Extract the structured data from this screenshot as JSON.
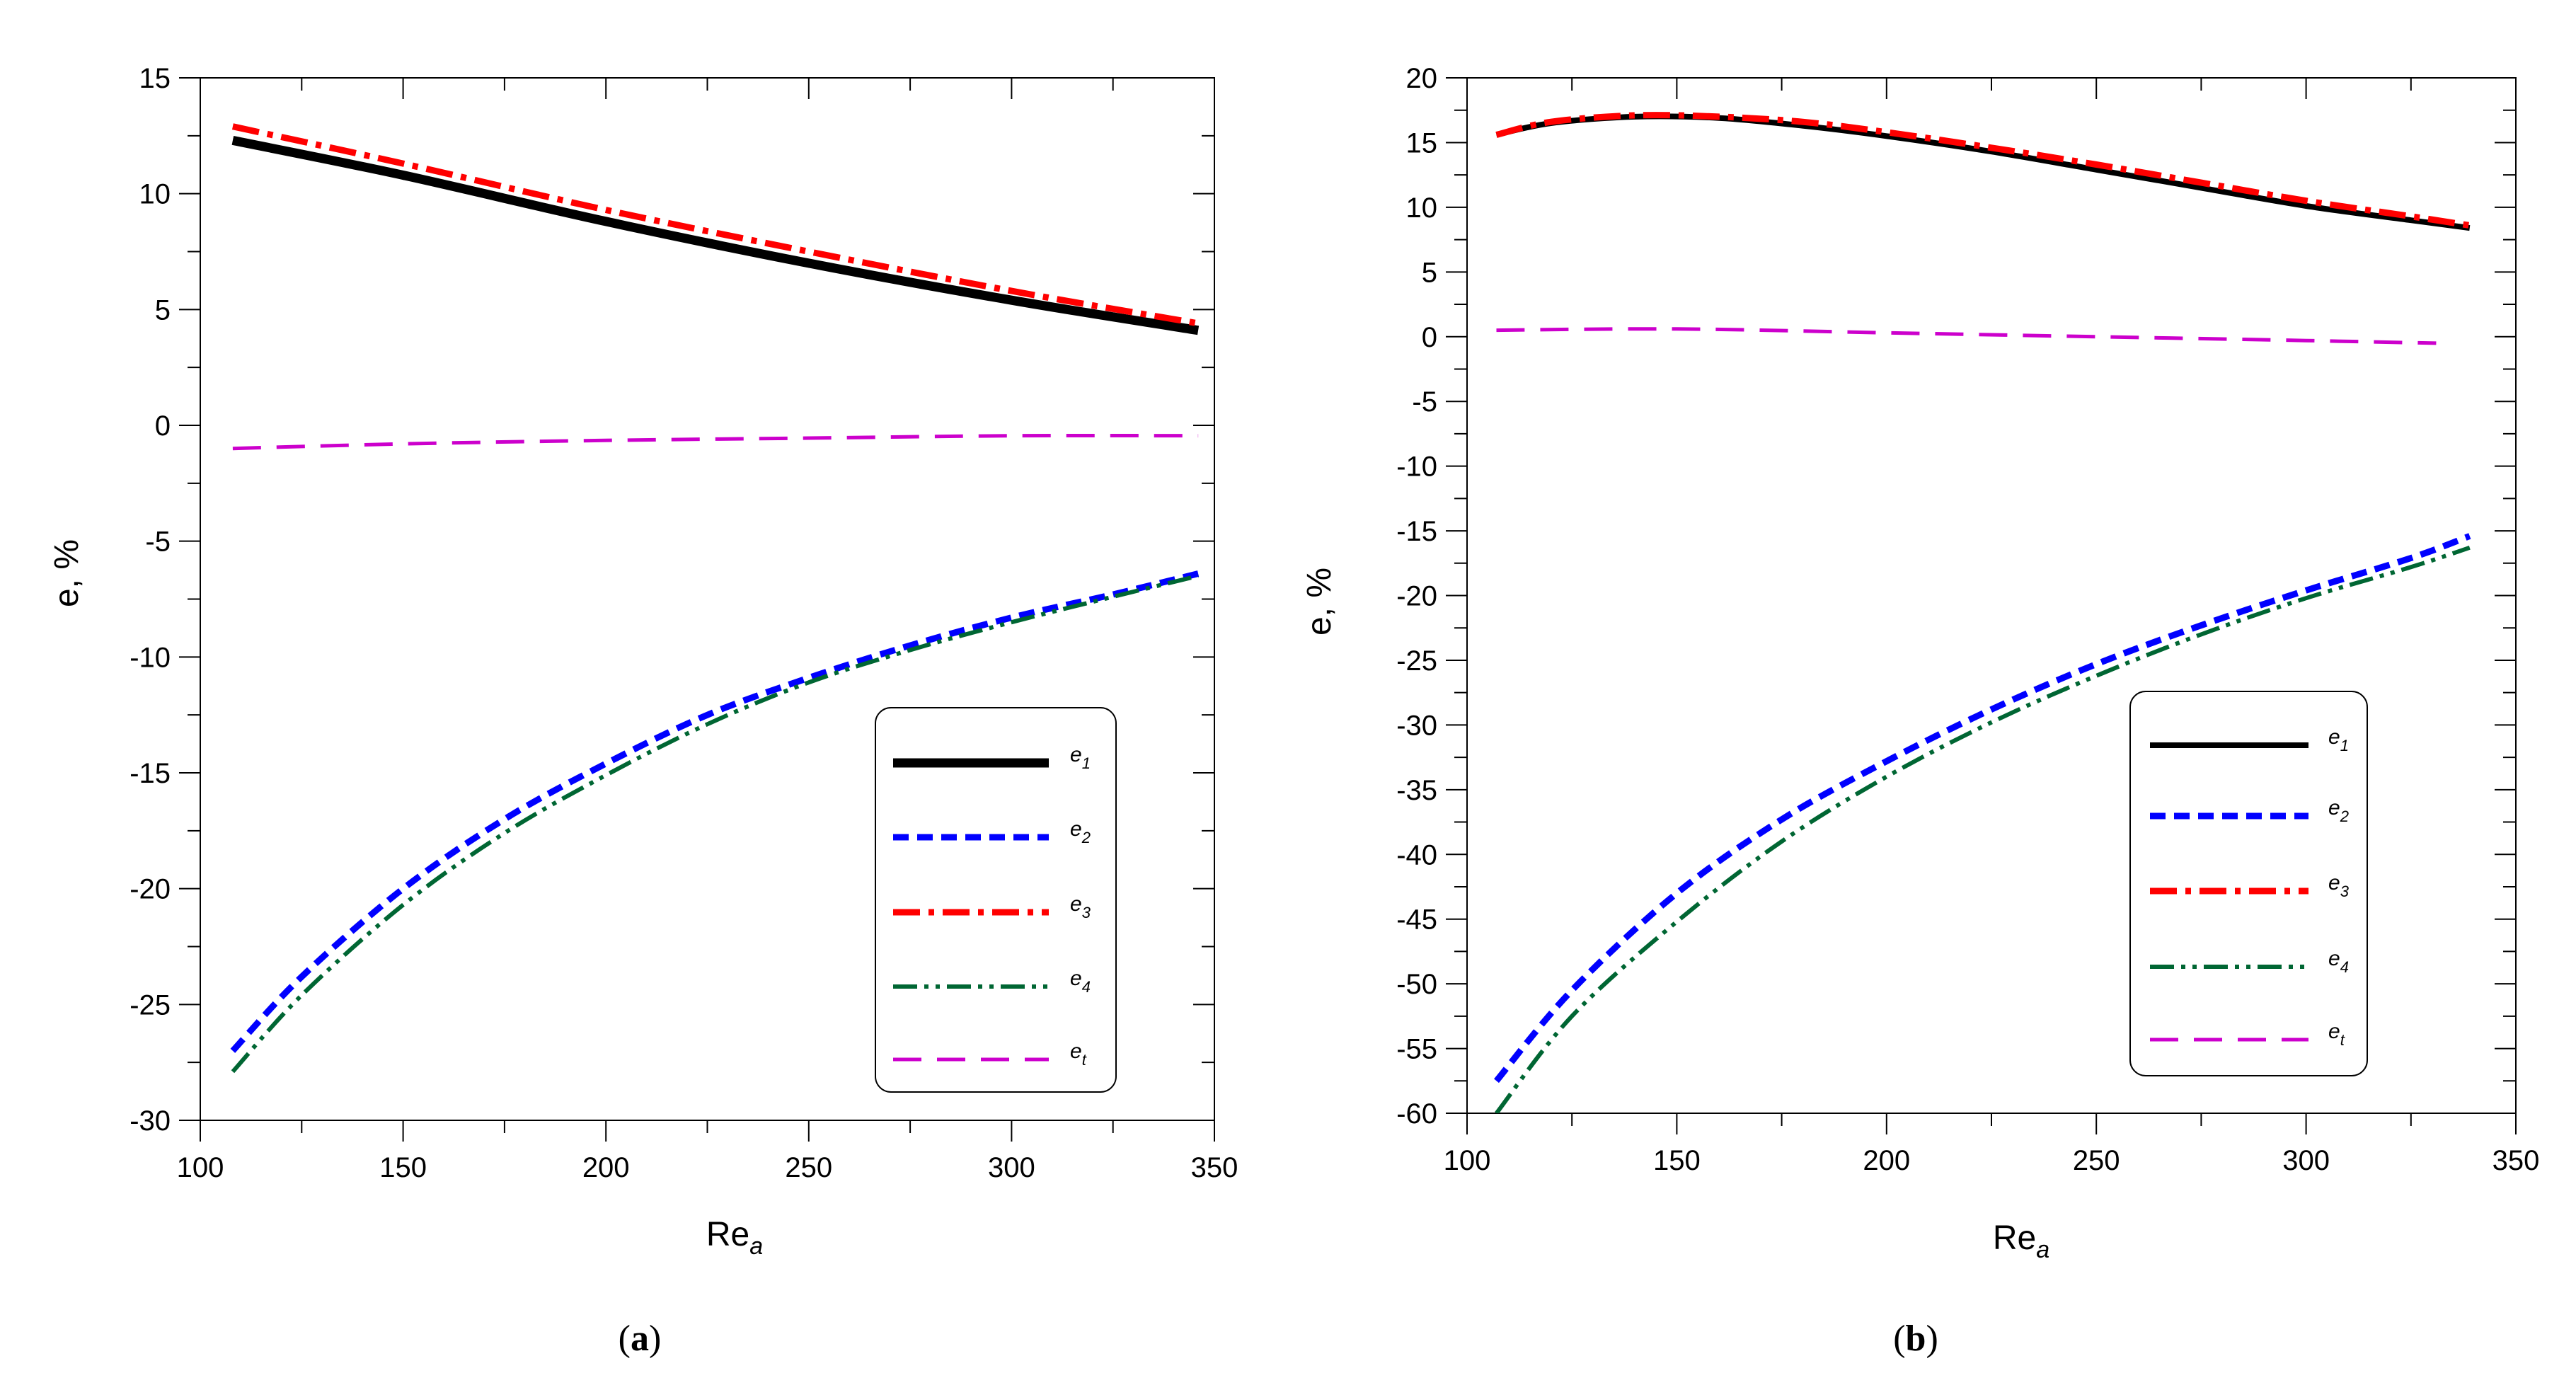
{
  "chart_data": [
    {
      "type": "line",
      "panel_label": "a",
      "xlabel": "Re",
      "xlabel_sub": "a",
      "ylabel": "e, %",
      "xlim": [
        100,
        350
      ],
      "ylim": [
        -30,
        15
      ],
      "xticks": [
        100,
        150,
        200,
        250,
        300,
        350
      ],
      "yticks": [
        -30,
        -25,
        -20,
        -15,
        -10,
        -5,
        0,
        5,
        10,
        15
      ],
      "grid": false,
      "legend_position": "bottom-right",
      "series": [
        {
          "name": "e",
          "sub": "1",
          "color": "#000000",
          "style": "solid-thick",
          "x": [
            108,
            150,
            200,
            250,
            300,
            346
          ],
          "y": [
            12.3,
            10.8,
            8.8,
            7.0,
            5.4,
            4.1
          ]
        },
        {
          "name": "e",
          "sub": "2",
          "color": "#0000ff",
          "style": "dash",
          "x": [
            108,
            125,
            150,
            175,
            200,
            225,
            250,
            275,
            300,
            325,
            346
          ],
          "y": [
            -27.0,
            -23.8,
            -20.0,
            -17.0,
            -14.6,
            -12.5,
            -10.9,
            -9.5,
            -8.3,
            -7.3,
            -6.4
          ]
        },
        {
          "name": "e",
          "sub": "3",
          "color": "#ff0000",
          "style": "dashdot",
          "x": [
            108,
            150,
            200,
            250,
            300,
            346
          ],
          "y": [
            12.9,
            11.3,
            9.3,
            7.5,
            5.8,
            4.4
          ]
        },
        {
          "name": "e",
          "sub": "4",
          "color": "#006633",
          "style": "dashdotdot",
          "x": [
            108,
            125,
            150,
            175,
            200,
            225,
            250,
            275,
            300,
            325,
            346
          ],
          "y": [
            -27.9,
            -24.6,
            -20.7,
            -17.6,
            -15.1,
            -12.9,
            -11.1,
            -9.7,
            -8.5,
            -7.4,
            -6.5
          ]
        },
        {
          "name": "e",
          "sub": "t",
          "color": "#cc00cc",
          "style": "longdash",
          "x": [
            108,
            150,
            200,
            250,
            300,
            346
          ],
          "y": [
            -1.0,
            -0.8,
            -0.65,
            -0.55,
            -0.45,
            -0.45
          ]
        }
      ]
    },
    {
      "type": "line",
      "panel_label": "b",
      "xlabel": "Re",
      "xlabel_sub": "a",
      "ylabel": "e, %",
      "xlim": [
        100,
        350
      ],
      "ylim": [
        -60,
        20
      ],
      "xticks": [
        100,
        150,
        200,
        250,
        300,
        350
      ],
      "yticks": [
        -60,
        -55,
        -50,
        -45,
        -40,
        -35,
        -30,
        -25,
        -20,
        -15,
        -10,
        -5,
        0,
        5,
        10,
        15,
        20
      ],
      "grid": false,
      "legend_position": "bottom-right",
      "series": [
        {
          "name": "e",
          "sub": "1",
          "color": "#000000",
          "style": "solid",
          "x": [
            107,
            120,
            140,
            160,
            180,
            200,
            225,
            250,
            275,
            300,
            325,
            339
          ],
          "y": [
            15.6,
            16.5,
            17.0,
            16.9,
            16.3,
            15.5,
            14.3,
            12.9,
            11.5,
            10.1,
            9.0,
            8.4
          ]
        },
        {
          "name": "e",
          "sub": "2",
          "color": "#0000ff",
          "style": "dash",
          "x": [
            107,
            125,
            150,
            175,
            200,
            225,
            250,
            275,
            300,
            325,
            339
          ],
          "y": [
            -57.5,
            -50.5,
            -43.0,
            -37.3,
            -32.8,
            -28.8,
            -25.3,
            -22.3,
            -19.6,
            -17.1,
            -15.4
          ]
        },
        {
          "name": "e",
          "sub": "3",
          "color": "#ff0000",
          "style": "dashdot",
          "x": [
            107,
            120,
            140,
            160,
            180,
            200,
            225,
            250,
            275,
            300,
            325,
            339
          ],
          "y": [
            15.6,
            16.6,
            17.1,
            17.0,
            16.6,
            15.8,
            14.6,
            13.3,
            11.9,
            10.5,
            9.3,
            8.6
          ]
        },
        {
          "name": "e",
          "sub": "4",
          "color": "#006633",
          "style": "dashdotdot",
          "x": [
            107,
            125,
            150,
            175,
            200,
            225,
            250,
            275,
            300,
            325,
            339
          ],
          "y": [
            -60.0,
            -52.5,
            -45.2,
            -39.0,
            -34.0,
            -29.8,
            -26.2,
            -23.0,
            -20.2,
            -17.8,
            -16.3
          ]
        },
        {
          "name": "e",
          "sub": "t",
          "color": "#cc00cc",
          "style": "longdash",
          "x": [
            107,
            150,
            200,
            250,
            300,
            331
          ],
          "y": [
            0.5,
            0.6,
            0.3,
            0.0,
            -0.3,
            -0.5
          ]
        }
      ]
    }
  ]
}
